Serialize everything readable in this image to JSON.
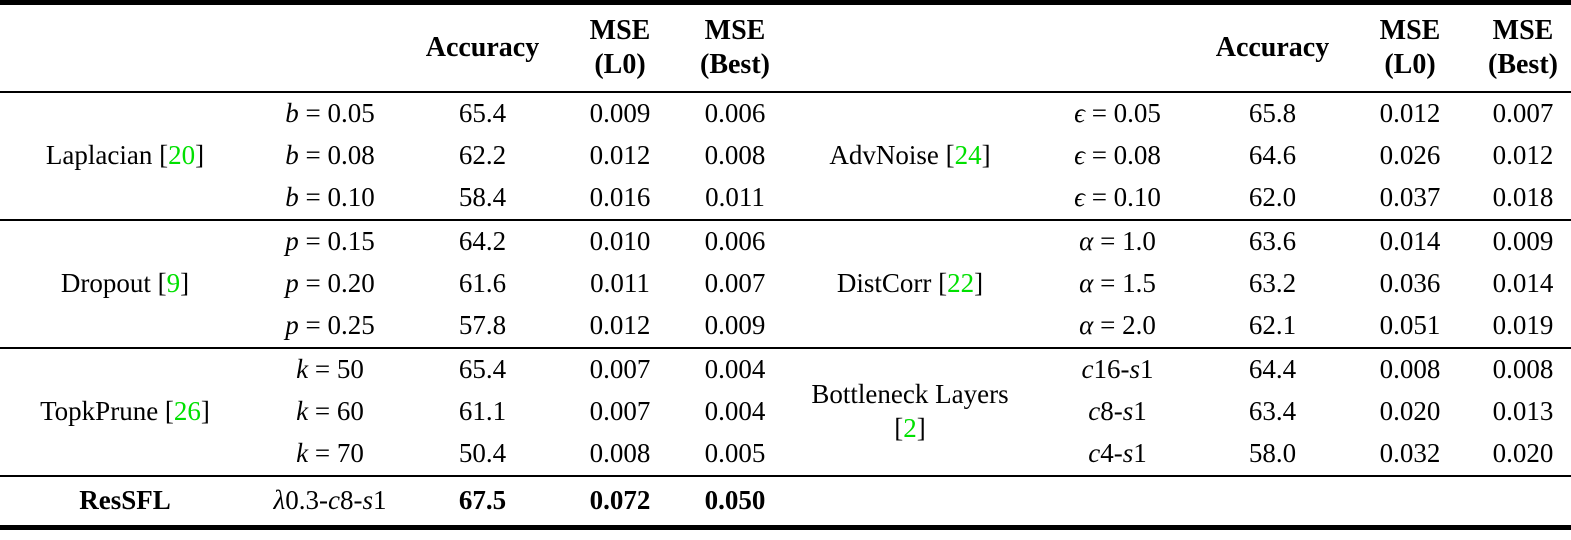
{
  "accent": {
    "citation_color": "#00e000"
  },
  "header": {
    "accuracy": "Accuracy",
    "mse_l0": {
      "line1": "MSE",
      "line2": "(L0)"
    },
    "mse_best": {
      "line1": "MSE",
      "line2": "(Best)"
    }
  },
  "blocks": [
    {
      "left": {
        "method": "Laplacian [20]",
        "rows": [
          {
            "param": "b = 0.05",
            "acc": "65.4",
            "mse_l0": "0.009",
            "mse_best": "0.006"
          },
          {
            "param": "b = 0.08",
            "acc": "62.2",
            "mse_l0": "0.012",
            "mse_best": "0.008"
          },
          {
            "param": "b = 0.10",
            "acc": "58.4",
            "mse_l0": "0.016",
            "mse_best": "0.011"
          }
        ]
      },
      "right": {
        "method": "AdvNoise [24]",
        "rows": [
          {
            "param": "ϵ = 0.05",
            "acc": "65.8",
            "mse_l0": "0.012",
            "mse_best": "0.007"
          },
          {
            "param": "ϵ = 0.08",
            "acc": "64.6",
            "mse_l0": "0.026",
            "mse_best": "0.012"
          },
          {
            "param": "ϵ = 0.10",
            "acc": "62.0",
            "mse_l0": "0.037",
            "mse_best": "0.018"
          }
        ]
      }
    },
    {
      "left": {
        "method": "Dropout [9]",
        "rows": [
          {
            "param": "p = 0.15",
            "acc": "64.2",
            "mse_l0": "0.010",
            "mse_best": "0.006"
          },
          {
            "param": "p = 0.20",
            "acc": "61.6",
            "mse_l0": "0.011",
            "mse_best": "0.007"
          },
          {
            "param": "p = 0.25",
            "acc": "57.8",
            "mse_l0": "0.012",
            "mse_best": "0.009"
          }
        ]
      },
      "right": {
        "method": "DistCorr [22]",
        "rows": [
          {
            "param": "α = 1.0",
            "acc": "63.6",
            "mse_l0": "0.014",
            "mse_best": "0.009"
          },
          {
            "param": "α = 1.5",
            "acc": "63.2",
            "mse_l0": "0.036",
            "mse_best": "0.014"
          },
          {
            "param": "α = 2.0",
            "acc": "62.1",
            "mse_l0": "0.051",
            "mse_best": "0.019"
          }
        ]
      }
    },
    {
      "left": {
        "method": "TopkPrune [26]",
        "rows": [
          {
            "param": "k = 50",
            "acc": "65.4",
            "mse_l0": "0.007",
            "mse_best": "0.004"
          },
          {
            "param": "k = 60",
            "acc": "61.1",
            "mse_l0": "0.007",
            "mse_best": "0.004"
          },
          {
            "param": "k = 70",
            "acc": "50.4",
            "mse_l0": "0.008",
            "mse_best": "0.005"
          }
        ]
      },
      "right": {
        "method": "Bottleneck Layers [2]",
        "rows": [
          {
            "param": "c16-s1",
            "acc": "64.4",
            "mse_l0": "0.008",
            "mse_best": "0.008"
          },
          {
            "param": "c8-s1",
            "acc": "63.4",
            "mse_l0": "0.020",
            "mse_best": "0.013"
          },
          {
            "param": "c4-s1",
            "acc": "58.0",
            "mse_l0": "0.032",
            "mse_best": "0.020"
          }
        ]
      }
    }
  ],
  "footer": {
    "method": "ResSFL",
    "param": "λ0.3-c8-s1",
    "acc": "67.5",
    "mse_l0": "0.072",
    "mse_best": "0.050"
  }
}
